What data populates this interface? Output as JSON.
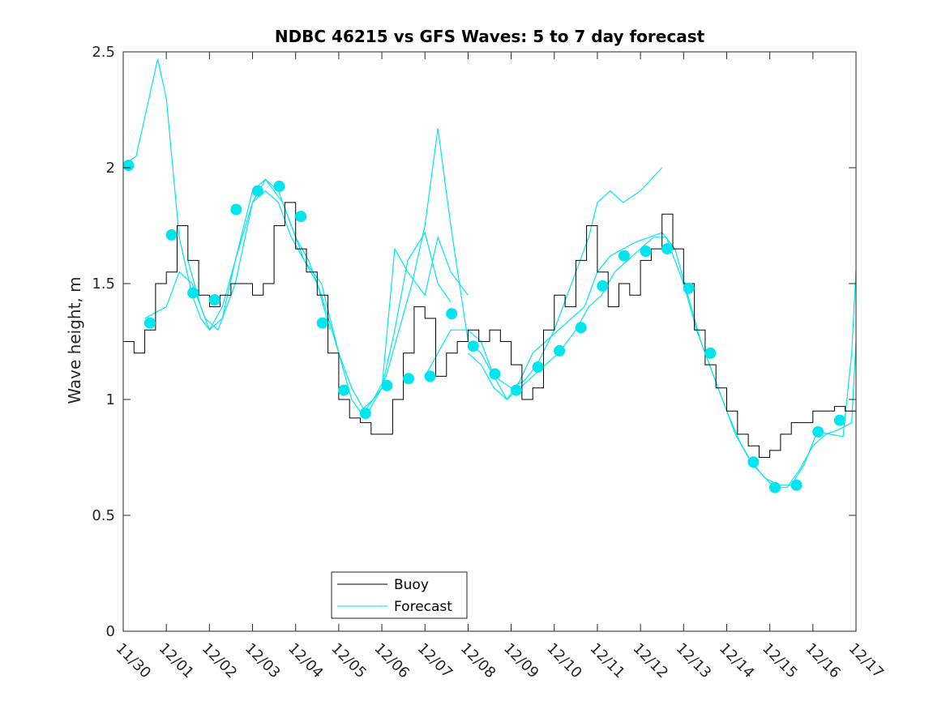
{
  "chart_data": {
    "type": "line",
    "title": "NDBC 46215 vs GFS Waves: 5 to 7 day forecast",
    "xlabel": "",
    "ylabel": "Wave height, m",
    "xlim": [
      0,
      17
    ],
    "ylim": [
      0,
      2.5
    ],
    "x_tick_values": [
      0,
      1,
      2,
      3,
      4,
      5,
      6,
      7,
      8,
      9,
      10,
      11,
      12,
      13,
      14,
      15,
      16,
      17
    ],
    "x_tick_labels": [
      "11/30",
      "12/01",
      "12/02",
      "12/03",
      "12/04",
      "12/05",
      "12/06",
      "12/07",
      "12/08",
      "12/09",
      "12/10",
      "12/11",
      "12/12",
      "12/13",
      "12/14",
      "12/15",
      "12/16",
      "12/17"
    ],
    "y_tick_values": [
      0,
      0.5,
      1,
      1.5,
      2,
      2.5
    ],
    "y_tick_labels": [
      "0",
      "0.5",
      "1",
      "1.5",
      "2",
      "2.5"
    ],
    "grid": false,
    "legend": {
      "position": "bottom-center",
      "entries": [
        "Buoy",
        "Forecast"
      ]
    },
    "colors": {
      "buoy": "#000000",
      "forecast": "#00E5EE",
      "axis": "#262626"
    },
    "buoy": {
      "name": "Buoy",
      "x": [
        0,
        0.25,
        0.5,
        0.75,
        1,
        1.25,
        1.5,
        1.75,
        2,
        2.25,
        2.5,
        2.75,
        3,
        3.25,
        3.5,
        3.75,
        4,
        4.25,
        4.5,
        4.75,
        5,
        5.25,
        5.5,
        5.75,
        6,
        6.25,
        6.5,
        6.75,
        7,
        7.25,
        7.5,
        7.75,
        8,
        8.25,
        8.5,
        8.75,
        9,
        9.25,
        9.5,
        9.75,
        10,
        10.25,
        10.5,
        10.75,
        11,
        11.25,
        11.5,
        11.75,
        12,
        12.25,
        12.5,
        12.75,
        13,
        13.25,
        13.5,
        13.75,
        14,
        14.25,
        14.5,
        14.75,
        15,
        15.25,
        15.5,
        15.75,
        16,
        16.25,
        16.5,
        16.75,
        17
      ],
      "values": [
        1.25,
        1.2,
        1.3,
        1.5,
        1.55,
        1.75,
        1.6,
        1.45,
        1.4,
        1.45,
        1.5,
        1.5,
        1.45,
        1.5,
        1.75,
        1.85,
        1.65,
        1.55,
        1.45,
        1.2,
        1.0,
        0.92,
        0.9,
        0.85,
        0.85,
        1.0,
        1.2,
        1.4,
        1.35,
        1.1,
        1.2,
        1.25,
        1.3,
        1.25,
        1.3,
        1.25,
        1.15,
        1.0,
        1.05,
        1.3,
        1.45,
        1.4,
        1.6,
        1.75,
        1.55,
        1.4,
        1.5,
        1.45,
        1.6,
        1.65,
        1.8,
        1.65,
        1.5,
        1.3,
        1.15,
        1.05,
        0.95,
        0.85,
        0.8,
        0.75,
        0.78,
        0.85,
        0.9,
        0.9,
        0.95,
        0.95,
        0.97,
        0.95,
        0.95
      ]
    },
    "forecast_series": [
      {
        "name": "Forecast",
        "x": [
          0,
          0.3,
          0.6,
          0.8,
          1.0,
          1.3,
          1.6,
          1.8,
          2.0,
          2.3,
          2.6,
          3.0,
          3.3,
          3.6,
          3.9,
          4.2,
          4.5,
          4.8
        ],
        "values": [
          2.01,
          2.05,
          2.3,
          2.47,
          2.3,
          1.7,
          1.45,
          1.35,
          1.3,
          1.4,
          1.6,
          1.85,
          1.95,
          1.9,
          1.75,
          1.6,
          1.5,
          1.3
        ]
      },
      {
        "name": "Forecast",
        "x": [
          0.5,
          0.8,
          1.0,
          1.3,
          1.6,
          1.9,
          2.2,
          2.6,
          3.0,
          3.3,
          3.6,
          3.9,
          4.2,
          4.6,
          5.0,
          5.3,
          5.6,
          6.0,
          6.3,
          6.6,
          7.0,
          7.3,
          7.6
        ],
        "values": [
          1.35,
          1.38,
          1.4,
          1.55,
          1.5,
          1.35,
          1.3,
          1.5,
          1.85,
          1.9,
          1.85,
          1.7,
          1.6,
          1.5,
          1.2,
          1.05,
          0.95,
          1.05,
          1.3,
          1.6,
          1.72,
          1.5,
          1.42
        ]
      },
      {
        "name": "Forecast",
        "x": [
          1.5,
          1.8,
          2.0,
          2.3,
          2.6,
          3.0,
          3.3,
          3.7,
          4.0,
          4.3,
          4.6,
          5.0,
          5.3,
          5.6,
          6.0,
          6.3,
          6.6,
          7.0,
          7.3,
          7.6,
          8.0
        ],
        "values": [
          1.6,
          1.4,
          1.3,
          1.35,
          1.6,
          1.9,
          1.95,
          1.85,
          1.7,
          1.6,
          1.45,
          1.2,
          1.0,
          0.92,
          1.05,
          1.65,
          1.55,
          1.45,
          1.7,
          1.55,
          1.45
        ]
      },
      {
        "name": "Forecast",
        "x": [
          5.5,
          5.8,
          6.1,
          6.4,
          6.7,
          7.0,
          7.3,
          7.6,
          8.0,
          8.3,
          8.6,
          9.0,
          9.3,
          9.6,
          10.0,
          10.4,
          10.8,
          11.0,
          11.3,
          11.6,
          12.0,
          12.5
        ],
        "values": [
          0.95,
          1.0,
          1.1,
          1.3,
          1.5,
          1.75,
          2.17,
          1.75,
          1.25,
          1.2,
          1.1,
          1.05,
          1.08,
          1.15,
          1.3,
          1.5,
          1.7,
          1.85,
          1.9,
          1.85,
          1.9,
          2.0
        ]
      },
      {
        "name": "Forecast",
        "x": [
          7.0,
          7.3,
          7.6,
          8.0,
          8.3,
          8.6,
          8.9,
          9.2,
          9.5,
          9.8,
          10.1,
          10.5,
          10.8,
          11.1,
          11.4,
          11.7,
          12.0,
          12.3,
          12.6,
          13.0,
          13.3,
          13.6,
          13.9,
          14.2,
          14.5,
          14.8,
          15.1,
          15.4,
          15.7,
          16.0,
          16.3,
          16.6,
          16.9,
          17.0
        ],
        "values": [
          1.1,
          1.2,
          1.3,
          1.3,
          1.25,
          1.1,
          1.0,
          1.05,
          1.1,
          1.15,
          1.2,
          1.3,
          1.4,
          1.45,
          1.55,
          1.6,
          1.65,
          1.7,
          1.7,
          1.5,
          1.3,
          1.15,
          1.0,
          0.85,
          0.75,
          0.68,
          0.62,
          0.62,
          0.7,
          0.8,
          0.85,
          0.87,
          0.9,
          1.25
        ]
      },
      {
        "name": "Forecast",
        "x": [
          8.0,
          8.3,
          8.6,
          8.9,
          9.2,
          9.5,
          9.8,
          10.1,
          10.4,
          10.7,
          11.0,
          11.3,
          11.6,
          11.9,
          12.2,
          12.5,
          12.8,
          13.1,
          13.4,
          13.7,
          14.0,
          14.3,
          14.6,
          14.9,
          15.2,
          15.5,
          15.8,
          16.1,
          16.4,
          16.7,
          16.9,
          17.0
        ],
        "values": [
          1.2,
          1.15,
          1.05,
          1.0,
          1.08,
          1.2,
          1.25,
          1.3,
          1.35,
          1.4,
          1.55,
          1.62,
          1.65,
          1.68,
          1.7,
          1.72,
          1.65,
          1.45,
          1.25,
          1.1,
          0.95,
          0.82,
          0.72,
          0.66,
          0.63,
          0.63,
          0.72,
          0.86,
          0.85,
          0.84,
          1.2,
          1.56
        ]
      }
    ],
    "forecast_markers": {
      "name": "Forecast",
      "x": [
        0.12,
        0.62,
        1.12,
        1.62,
        2.12,
        2.62,
        3.12,
        3.62,
        4.12,
        4.62,
        5.12,
        5.62,
        6.12,
        6.62,
        7.12,
        7.62,
        8.12,
        8.62,
        9.12,
        9.62,
        10.12,
        10.62,
        11.12,
        11.62,
        12.12,
        12.62,
        13.12,
        13.62,
        14.62,
        15.12,
        15.62,
        16.12,
        16.62
      ],
      "values": [
        2.01,
        1.33,
        1.71,
        1.46,
        1.43,
        1.82,
        1.9,
        1.92,
        1.79,
        1.33,
        1.04,
        0.94,
        1.06,
        1.09,
        1.1,
        1.37,
        1.23,
        1.11,
        1.04,
        1.14,
        1.21,
        1.31,
        1.49,
        1.62,
        1.64,
        1.65,
        1.48,
        1.2,
        0.73,
        0.62,
        0.63,
        0.86,
        0.91
      ]
    }
  }
}
